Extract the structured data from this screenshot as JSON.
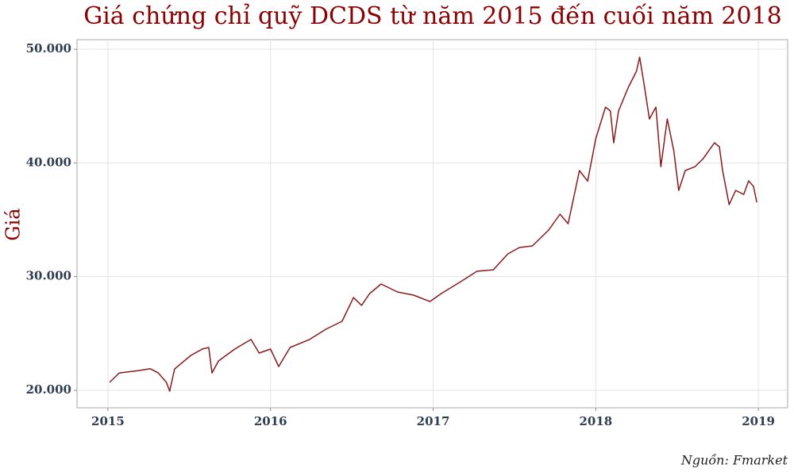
{
  "chart_data": {
    "type": "line",
    "title": "Giá chứng chỉ quỹ DCDS từ năm 2015 đến cuối năm 2018",
    "y_label": "Giá",
    "source": "Nguồn: Fmarket",
    "grid": true,
    "xlim": [
      2014.81,
      2019.18
    ],
    "xticks": [
      2015,
      2016,
      2017,
      2018,
      2019
    ],
    "ylim": [
      18465,
      50840
    ],
    "yticks": [
      {
        "value": 20000,
        "label": "20.000"
      },
      {
        "value": 30000,
        "label": "30.000"
      },
      {
        "value": 40000,
        "label": "40.000"
      },
      {
        "value": 50000,
        "label": "50.000"
      }
    ],
    "x": [
      2015.01,
      2015.07,
      2015.19,
      2015.26,
      2015.31,
      2015.36,
      2015.38,
      2015.41,
      2015.51,
      2015.58,
      2015.62,
      2015.64,
      2015.68,
      2015.78,
      2015.88,
      2015.93,
      2016.0,
      2016.05,
      2016.12,
      2016.24,
      2016.34,
      2016.44,
      2016.51,
      2016.56,
      2016.61,
      2016.68,
      2016.78,
      2016.88,
      2016.98,
      2017.05,
      2017.17,
      2017.27,
      2017.37,
      2017.46,
      2017.53,
      2017.61,
      2017.71,
      2017.78,
      2017.83,
      2017.9,
      2017.95,
      2018.0,
      2018.06,
      2018.09,
      2018.11,
      2018.14,
      2018.2,
      2018.25,
      2018.27,
      2018.3,
      2018.33,
      2018.37,
      2018.4,
      2018.44,
      2018.48,
      2018.51,
      2018.55,
      2018.61,
      2018.66,
      2018.73,
      2018.76,
      2018.78,
      2018.82,
      2018.86,
      2018.91,
      2018.94,
      2018.97,
      2018.99
    ],
    "series": [
      {
        "name": "DCDS",
        "color": "#8b1a1a",
        "values": [
          20700,
          21530,
          21740,
          21900,
          21530,
          20700,
          19930,
          21880,
          23070,
          23630,
          23770,
          21530,
          22580,
          23630,
          24470,
          23280,
          23630,
          22090,
          23770,
          24470,
          25370,
          26070,
          28160,
          27470,
          28510,
          29350,
          28650,
          28370,
          27810,
          28510,
          29560,
          30470,
          30600,
          32000,
          32560,
          32700,
          34090,
          35490,
          34650,
          39330,
          38400,
          42120,
          44910,
          44560,
          41770,
          44560,
          46650,
          48050,
          49300,
          46650,
          43860,
          44910,
          39670,
          43860,
          41070,
          37580,
          39330,
          39670,
          40370,
          41770,
          41420,
          39330,
          36330,
          37580,
          37230,
          38420,
          37930,
          36540
        ]
      }
    ]
  }
}
